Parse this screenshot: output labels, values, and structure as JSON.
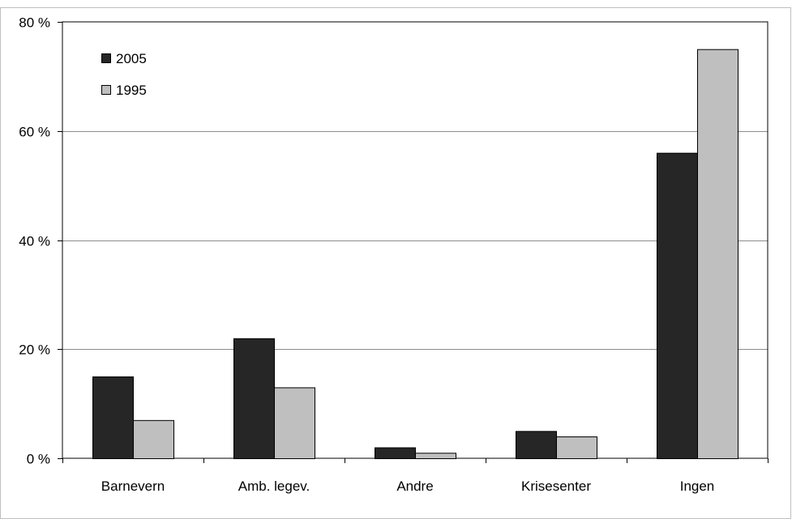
{
  "chart_data": {
    "type": "bar",
    "categories": [
      "Barnevern",
      "Amb. legev.",
      "Andre",
      "Krisesenter",
      "Ingen"
    ],
    "series": [
      {
        "name": "2005",
        "values": [
          15,
          22,
          2,
          5,
          56
        ],
        "color": "#262626"
      },
      {
        "name": "1995",
        "values": [
          7,
          13,
          1,
          4,
          75
        ],
        "color": "#bfbfbf"
      }
    ],
    "ylim": [
      0,
      80
    ],
    "yticks": [
      0,
      20,
      40,
      60,
      80
    ],
    "ytick_labels": [
      "0 %",
      "20 %",
      "40 %",
      "60 %",
      "80 %"
    ],
    "title": "",
    "xlabel": "",
    "ylabel": "",
    "grid": true,
    "legend_position": "top-left"
  }
}
